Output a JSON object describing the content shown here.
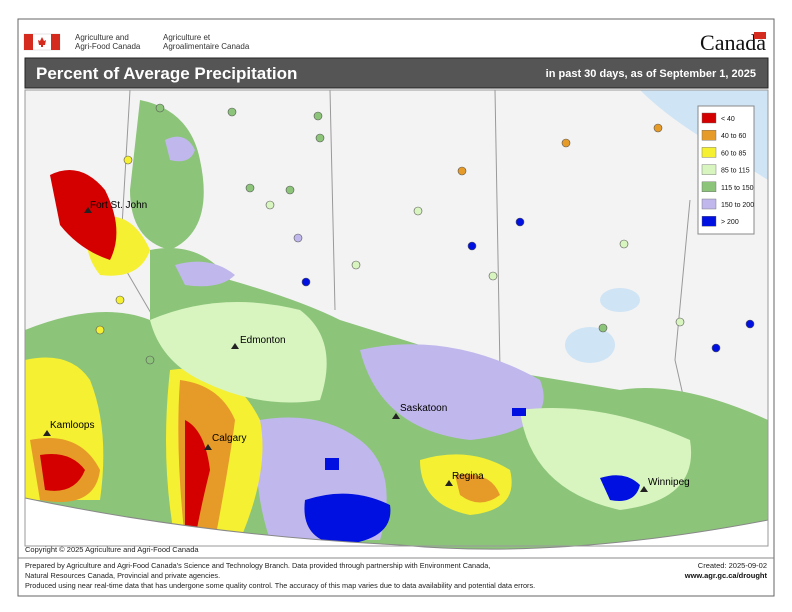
{
  "header": {
    "department_en": [
      "Agriculture and",
      "Agri-Food Canada"
    ],
    "department_fr": [
      "Agriculture et",
      "Agroalimentaire Canada"
    ],
    "wordmark": "Canada"
  },
  "title": "Percent of Average Precipitation",
  "subtitle": "in past 30 days, as of September 1, 2025",
  "legend": [
    {
      "label": "< 40",
      "color": "#d40000"
    },
    {
      "label": "40 to 60",
      "color": "#e69a28"
    },
    {
      "label": "60 to 85",
      "color": "#f5f032"
    },
    {
      "label": "85 to 115",
      "color": "#d8f5c0"
    },
    {
      "label": "115 to 150",
      "color": "#8cc47a"
    },
    {
      "label": "150 to 200",
      "color": "#c0b8ec"
    },
    {
      "label": "> 200",
      "color": "#0010e0"
    }
  ],
  "cities": [
    "Fort St. John",
    "Edmonton",
    "Kamloops",
    "Calgary",
    "Saskatoon",
    "Regina",
    "Winnipeg"
  ],
  "copyright": "Copyright © 2025 Agriculture and Agri-Food Canada",
  "footer": {
    "lines": [
      "Prepared by Agriculture and Agri-Food Canada's Science and Technology Branch. Data provided through partnership with Environment Canada,",
      "Natural Resources Canada, Provincial and private agencies.",
      "Produced using near real-time data that has undergone some quality control. The accuracy of this map varies due to data availability and potential data errors."
    ],
    "created": "Created: 2025-09-02",
    "url": "www.agr.gc.ca/drought"
  }
}
